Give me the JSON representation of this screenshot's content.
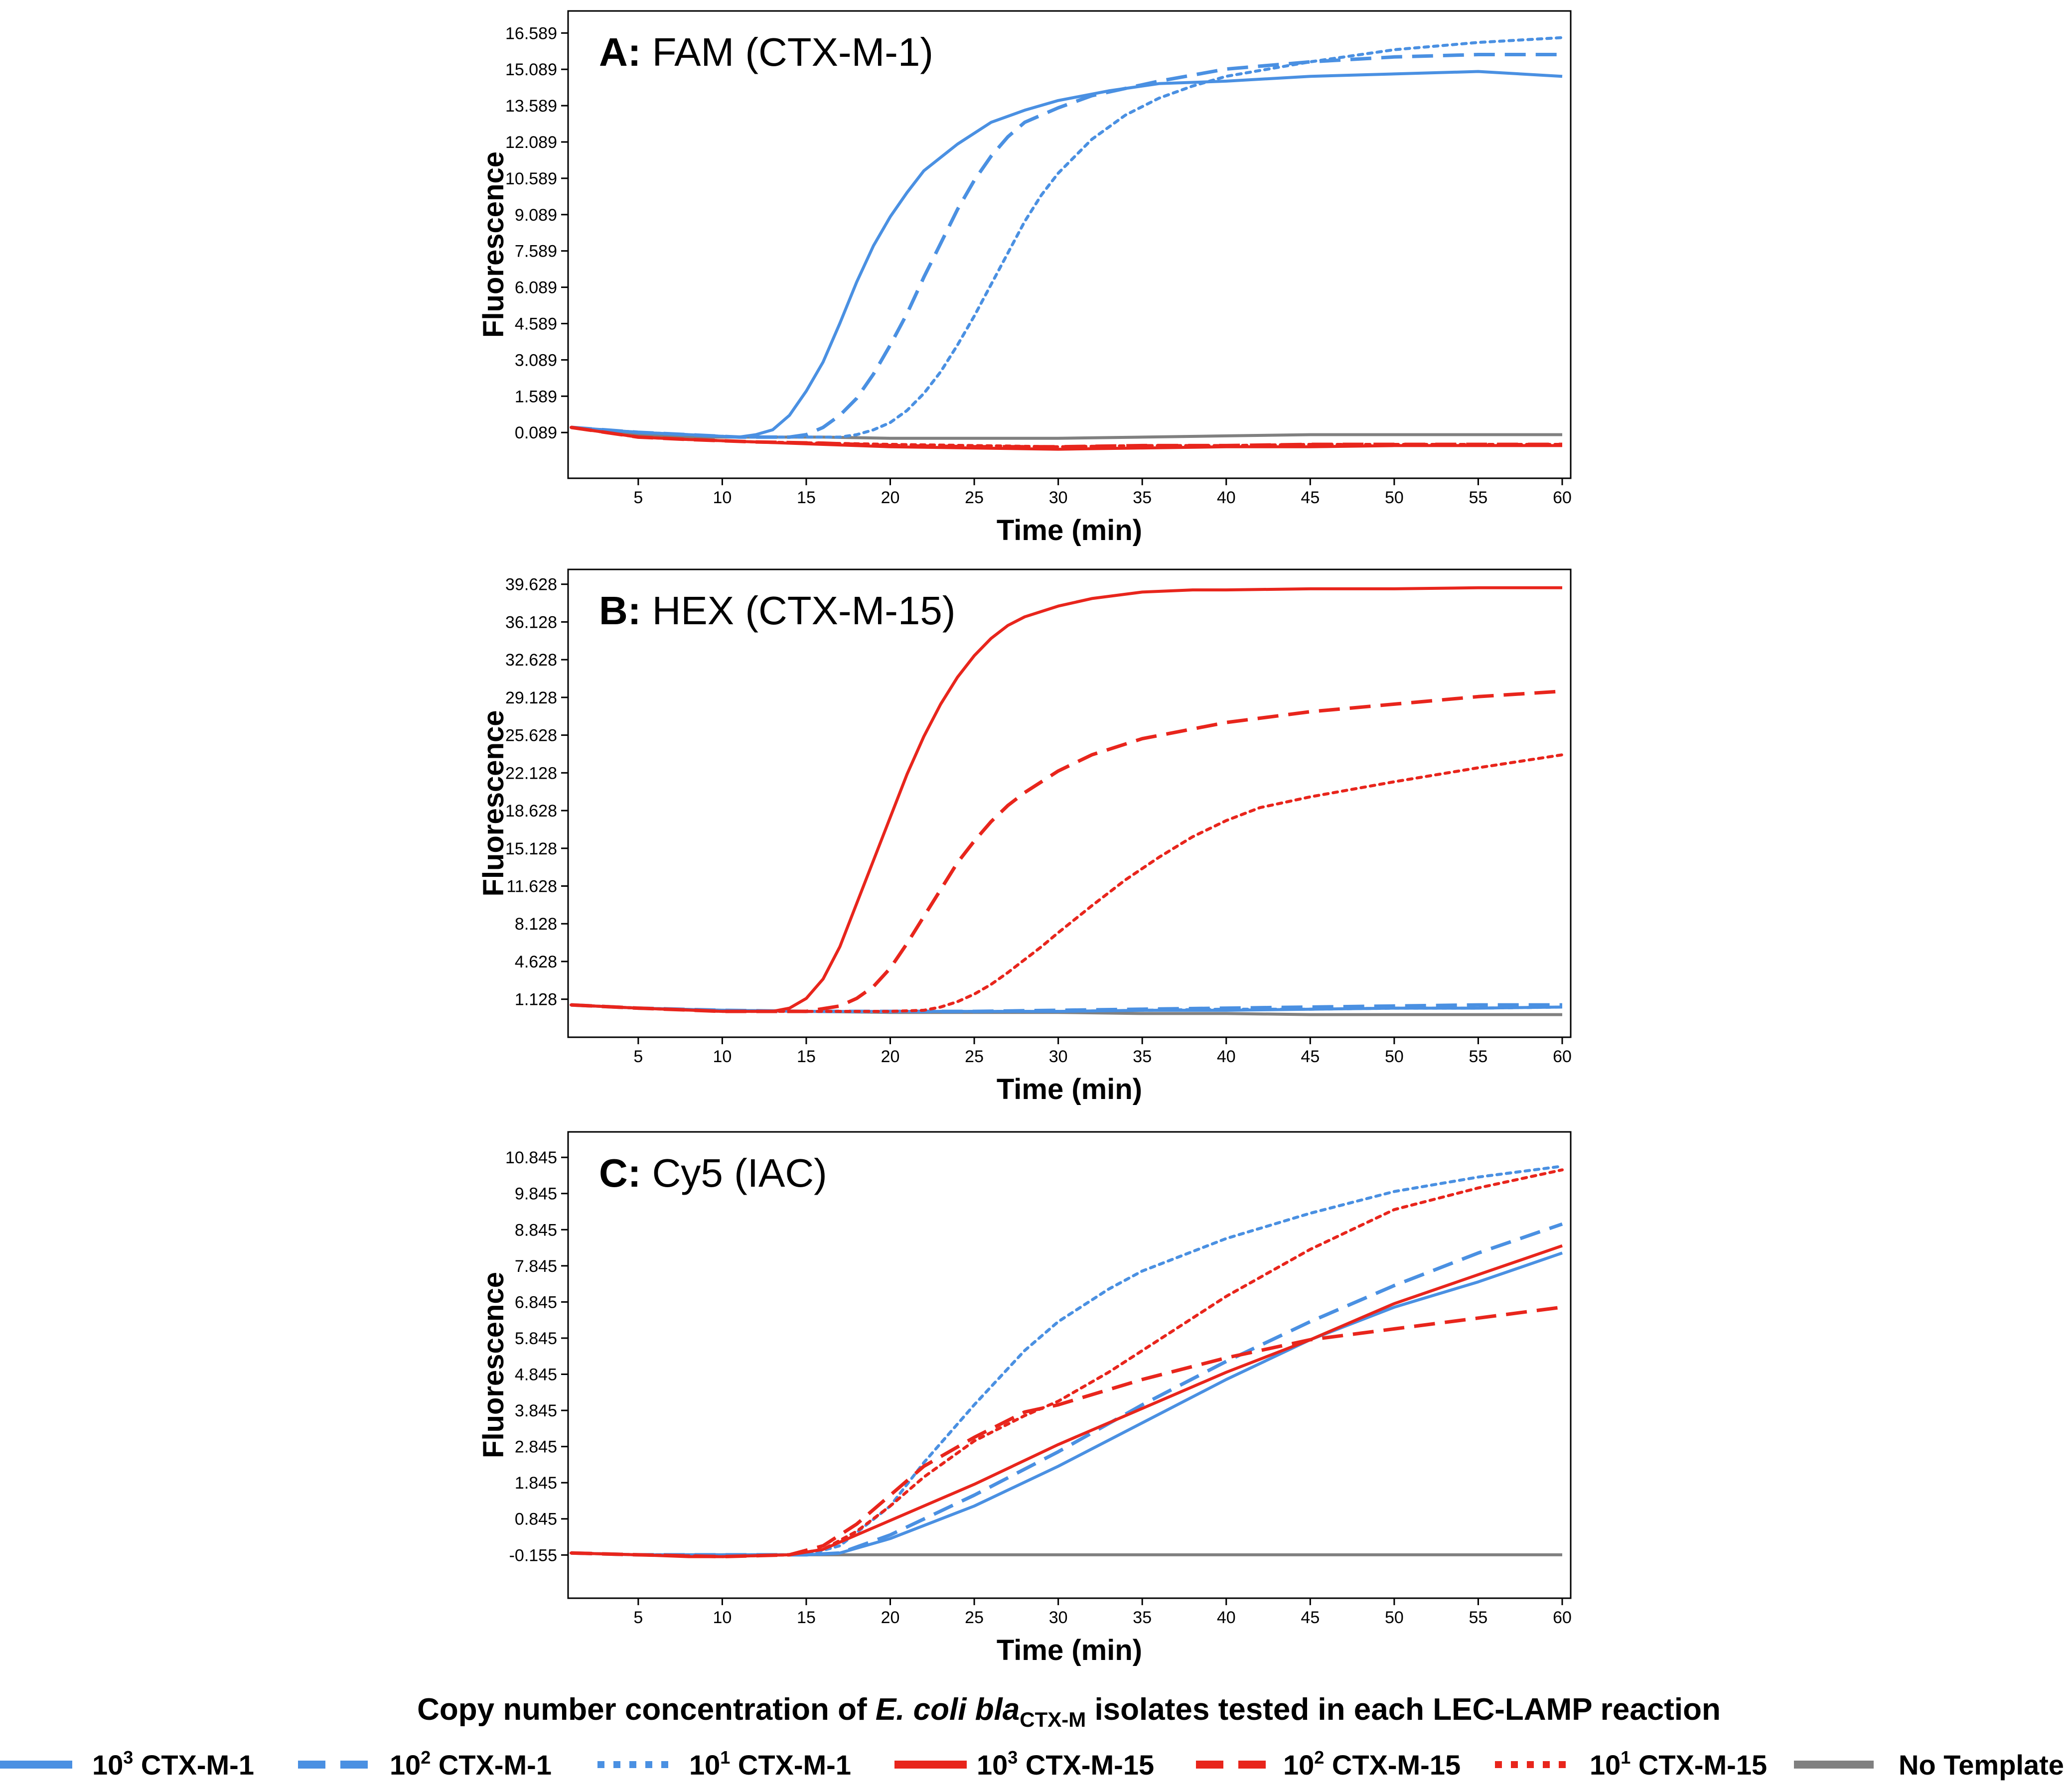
{
  "colors": {
    "blue": "#4a90e2",
    "red": "#e8251c",
    "gray": "#808080",
    "axis": "#000000",
    "plot_bg": "#ffffff"
  },
  "chart_data": [
    {
      "type": "line",
      "panel_letter": "A:",
      "title": "FAM (CTX-M-1)",
      "xlabel": "Time (min)",
      "ylabel": "Fluorescence",
      "xlim": [
        1,
        60
      ],
      "ylim": [
        -1.8,
        17.5
      ],
      "xticks": [
        5,
        10,
        15,
        20,
        25,
        30,
        35,
        40,
        45,
        50,
        55,
        60
      ],
      "yticks": [
        "0.089",
        "1.589",
        "3.089",
        "4.589",
        "6.089",
        "7.589",
        "9.089",
        "10.589",
        "12.089",
        "13.589",
        "15.089",
        "16.589"
      ],
      "series": [
        {
          "name": "10³ CTX-M-1",
          "color": "blue",
          "dash": "solid",
          "x": [
            1,
            3,
            5,
            8,
            11,
            12,
            13,
            14,
            15,
            16,
            17,
            18,
            19,
            20,
            21,
            22,
            24,
            26,
            28,
            30,
            33,
            36,
            40,
            45,
            50,
            55,
            60
          ],
          "values": [
            0.3,
            0.2,
            0.1,
            0.0,
            -0.1,
            0.0,
            0.2,
            0.8,
            1.8,
            3.0,
            4.6,
            6.3,
            7.8,
            9.0,
            10.0,
            10.9,
            12.0,
            12.9,
            13.4,
            13.8,
            14.2,
            14.5,
            14.6,
            14.8,
            14.9,
            15.0,
            14.8
          ]
        },
        {
          "name": "10² CTX-M-1",
          "color": "blue",
          "dash": "dash",
          "x": [
            1,
            3,
            5,
            8,
            11,
            14,
            15,
            16,
            17,
            18,
            19,
            20,
            21,
            22,
            23,
            24,
            25,
            26,
            27,
            28,
            30,
            32,
            34,
            36,
            40,
            45,
            50,
            55,
            60
          ],
          "values": [
            0.3,
            0.2,
            0.1,
            0.0,
            -0.1,
            -0.1,
            0.0,
            0.3,
            0.8,
            1.5,
            2.5,
            3.7,
            5.0,
            6.5,
            7.9,
            9.3,
            10.5,
            11.5,
            12.3,
            12.9,
            13.5,
            14.0,
            14.3,
            14.6,
            15.1,
            15.4,
            15.6,
            15.7,
            15.7
          ]
        },
        {
          "name": "10¹ CTX-M-1",
          "color": "blue",
          "dash": "dot",
          "x": [
            1,
            3,
            5,
            8,
            11,
            14,
            17,
            18,
            19,
            20,
            21,
            22,
            23,
            24,
            25,
            26,
            27,
            28,
            29,
            30,
            32,
            34,
            36,
            38,
            40,
            45,
            50,
            55,
            60
          ],
          "values": [
            0.3,
            0.2,
            0.1,
            0.0,
            -0.1,
            -0.1,
            -0.1,
            0.0,
            0.2,
            0.5,
            1.0,
            1.7,
            2.6,
            3.7,
            4.9,
            6.2,
            7.5,
            8.8,
            9.9,
            10.8,
            12.2,
            13.2,
            13.9,
            14.4,
            14.8,
            15.4,
            15.9,
            16.2,
            16.4
          ]
        },
        {
          "name": "10³ CTX-M-15",
          "color": "red",
          "dash": "solid",
          "x": [
            1,
            3,
            5,
            8,
            12,
            16,
            20,
            25,
            30,
            35,
            40,
            45,
            50,
            55,
            60
          ],
          "values": [
            0.3,
            0.1,
            -0.1,
            -0.2,
            -0.3,
            -0.4,
            -0.5,
            -0.55,
            -0.6,
            -0.55,
            -0.5,
            -0.5,
            -0.45,
            -0.45,
            -0.45
          ]
        },
        {
          "name": "10² CTX-M-15",
          "color": "red",
          "dash": "dash",
          "x": [
            1,
            3,
            5,
            8,
            12,
            16,
            20,
            25,
            30,
            35,
            40,
            45,
            50,
            55,
            60
          ],
          "values": [
            0.3,
            0.1,
            -0.1,
            -0.2,
            -0.3,
            -0.35,
            -0.45,
            -0.5,
            -0.5,
            -0.45,
            -0.45,
            -0.4,
            -0.4,
            -0.4,
            -0.4
          ]
        },
        {
          "name": "10¹ CTX-M-15",
          "color": "red",
          "dash": "dot",
          "x": [
            1,
            3,
            5,
            8,
            12,
            16,
            20,
            25,
            30,
            35,
            40,
            45,
            50,
            55,
            60
          ],
          "values": [
            0.3,
            0.1,
            -0.1,
            -0.2,
            -0.3,
            -0.35,
            -0.4,
            -0.45,
            -0.5,
            -0.45,
            -0.45,
            -0.4,
            -0.4,
            -0.4,
            -0.4
          ]
        },
        {
          "name": "No Template",
          "color": "gray",
          "dash": "solid",
          "x": [
            1,
            3,
            5,
            8,
            12,
            16,
            20,
            25,
            30,
            35,
            40,
            45,
            50,
            55,
            60
          ],
          "values": [
            0.3,
            0.1,
            0.0,
            -0.1,
            -0.1,
            -0.1,
            -0.15,
            -0.15,
            -0.15,
            -0.1,
            -0.05,
            0.0,
            0.0,
            0.0,
            0.0
          ]
        }
      ]
    },
    {
      "type": "line",
      "panel_letter": "B:",
      "title": "HEX (CTX-M-15)",
      "xlabel": "Time (min)",
      "ylabel": "Fluorescence",
      "xlim": [
        1,
        60
      ],
      "ylim": [
        -2.4,
        41
      ],
      "xticks": [
        5,
        10,
        15,
        20,
        25,
        30,
        35,
        40,
        45,
        50,
        55,
        60
      ],
      "yticks": [
        "1.128",
        "4.628",
        "8.128",
        "11.628",
        "15.128",
        "18.628",
        "22.128",
        "25.628",
        "29.128",
        "32.628",
        "36.128",
        "39.628"
      ],
      "series": [
        {
          "name": "10³ CTX-M-1",
          "color": "blue",
          "dash": "solid",
          "x": [
            1,
            5,
            10,
            15,
            20,
            25,
            30,
            35,
            40,
            45,
            50,
            55,
            60
          ],
          "values": [
            0.6,
            0.3,
            0.1,
            0.0,
            0.0,
            0.0,
            0.0,
            0.1,
            0.1,
            0.2,
            0.3,
            0.3,
            0.4
          ]
        },
        {
          "name": "10² CTX-M-1",
          "color": "blue",
          "dash": "dash",
          "x": [
            1,
            5,
            10,
            15,
            20,
            25,
            30,
            35,
            40,
            45,
            50,
            55,
            60
          ],
          "values": [
            0.6,
            0.3,
            0.1,
            0.0,
            0.0,
            0.0,
            0.1,
            0.2,
            0.3,
            0.4,
            0.5,
            0.6,
            0.6
          ]
        },
        {
          "name": "10¹ CTX-M-1",
          "color": "blue",
          "dash": "dot",
          "x": [
            1,
            5,
            10,
            15,
            20,
            25,
            30,
            35,
            40,
            45,
            50,
            55,
            60
          ],
          "values": [
            0.6,
            0.3,
            0.1,
            0.0,
            0.0,
            0.0,
            0.0,
            0.1,
            0.2,
            0.2,
            0.3,
            0.3,
            0.4
          ]
        },
        {
          "name": "10³ CTX-M-15",
          "color": "red",
          "dash": "solid",
          "x": [
            1,
            5,
            10,
            13,
            14,
            15,
            16,
            17,
            18,
            19,
            20,
            21,
            22,
            23,
            24,
            25,
            26,
            27,
            28,
            30,
            32,
            35,
            38,
            40,
            45,
            50,
            55,
            60
          ],
          "values": [
            0.6,
            0.3,
            0.0,
            0.0,
            0.3,
            1.2,
            3.0,
            6.0,
            10.0,
            14.0,
            18.0,
            22.0,
            25.5,
            28.5,
            31.0,
            33.0,
            34.6,
            35.8,
            36.6,
            37.6,
            38.3,
            38.9,
            39.1,
            39.1,
            39.2,
            39.2,
            39.3,
            39.3
          ]
        },
        {
          "name": "10² CTX-M-15",
          "color": "red",
          "dash": "dash",
          "x": [
            1,
            5,
            10,
            15,
            17,
            18,
            19,
            20,
            21,
            22,
            23,
            24,
            25,
            26,
            27,
            28,
            30,
            32,
            35,
            40,
            45,
            50,
            55,
            60
          ],
          "values": [
            0.6,
            0.3,
            0.0,
            0.0,
            0.5,
            1.2,
            2.3,
            4.0,
            6.3,
            8.8,
            11.3,
            13.8,
            15.8,
            17.6,
            19.1,
            20.3,
            22.3,
            23.8,
            25.3,
            26.8,
            27.8,
            28.5,
            29.2,
            29.7
          ]
        },
        {
          "name": "10¹ CTX-M-15",
          "color": "red",
          "dash": "dot",
          "x": [
            1,
            5,
            10,
            15,
            20,
            22,
            23,
            24,
            25,
            26,
            27,
            28,
            29,
            30,
            32,
            34,
            36,
            38,
            40,
            42,
            45,
            50,
            55,
            60
          ],
          "values": [
            0.6,
            0.3,
            0.0,
            0.0,
            0.0,
            0.1,
            0.4,
            0.9,
            1.6,
            2.5,
            3.6,
            4.8,
            6.0,
            7.3,
            9.8,
            12.2,
            14.3,
            16.2,
            17.7,
            18.9,
            19.9,
            21.3,
            22.6,
            23.8
          ]
        },
        {
          "name": "No Template",
          "color": "gray",
          "dash": "solid",
          "x": [
            1,
            5,
            10,
            15,
            20,
            25,
            30,
            35,
            40,
            45,
            50,
            55,
            60
          ],
          "values": [
            0.6,
            0.3,
            0.1,
            0.0,
            -0.1,
            -0.1,
            -0.1,
            -0.2,
            -0.2,
            -0.3,
            -0.3,
            -0.3,
            -0.3
          ]
        }
      ]
    },
    {
      "type": "line",
      "panel_letter": "C:",
      "title": "Cy5 (IAC)",
      "xlabel": "Time (min)",
      "ylabel": "Fluorescence",
      "xlim": [
        1,
        60
      ],
      "ylim": [
        -1.35,
        11.55
      ],
      "xticks": [
        5,
        10,
        15,
        20,
        25,
        30,
        35,
        40,
        45,
        50,
        55,
        60
      ],
      "yticks": [
        "-0.155",
        "0.845",
        "1.845",
        "2.845",
        "3.845",
        "4.845",
        "5.845",
        "6.845",
        "7.845",
        "8.845",
        "9.845",
        "10.845"
      ],
      "series": [
        {
          "name": "10³ CTX-M-1",
          "color": "blue",
          "dash": "solid",
          "x": [
            1,
            5,
            10,
            15,
            17,
            20,
            25,
            30,
            35,
            40,
            45,
            50,
            55,
            60
          ],
          "values": [
            -0.1,
            -0.15,
            -0.15,
            -0.15,
            -0.1,
            0.3,
            1.2,
            2.3,
            3.5,
            4.7,
            5.8,
            6.7,
            7.4,
            8.2
          ]
        },
        {
          "name": "10² CTX-M-1",
          "color": "blue",
          "dash": "dash",
          "x": [
            1,
            5,
            10,
            15,
            17,
            20,
            25,
            30,
            35,
            40,
            45,
            50,
            55,
            60
          ],
          "values": [
            -0.1,
            -0.15,
            -0.15,
            -0.15,
            -0.1,
            0.4,
            1.5,
            2.7,
            4.0,
            5.2,
            6.3,
            7.3,
            8.2,
            9.0
          ]
        },
        {
          "name": "10¹ CTX-M-1",
          "color": "blue",
          "dash": "dot",
          "x": [
            1,
            5,
            10,
            15,
            17,
            20,
            22,
            25,
            28,
            30,
            33,
            35,
            40,
            45,
            50,
            55,
            60
          ],
          "values": [
            -0.1,
            -0.15,
            -0.15,
            -0.15,
            0.1,
            1.2,
            2.4,
            4.0,
            5.5,
            6.3,
            7.2,
            7.7,
            8.6,
            9.3,
            9.9,
            10.3,
            10.6
          ]
        },
        {
          "name": "10³ CTX-M-15",
          "color": "red",
          "dash": "solid",
          "x": [
            1,
            5,
            8,
            10,
            14,
            16,
            20,
            25,
            30,
            35,
            40,
            45,
            50,
            55,
            60
          ],
          "values": [
            -0.1,
            -0.15,
            -0.2,
            -0.2,
            -0.15,
            0.0,
            0.8,
            1.8,
            2.9,
            3.9,
            4.9,
            5.8,
            6.8,
            7.6,
            8.4
          ]
        },
        {
          "name": "10² CTX-M-15",
          "color": "red",
          "dash": "dash",
          "x": [
            1,
            5,
            10,
            14,
            16,
            18,
            20,
            22,
            25,
            28,
            30,
            35,
            40,
            45,
            50,
            55,
            60
          ],
          "values": [
            -0.1,
            -0.15,
            -0.2,
            -0.15,
            0.1,
            0.7,
            1.5,
            2.3,
            3.1,
            3.8,
            4.0,
            4.7,
            5.3,
            5.8,
            6.1,
            6.4,
            6.7
          ]
        },
        {
          "name": "10¹ CTX-M-15",
          "color": "red",
          "dash": "dot",
          "x": [
            1,
            5,
            10,
            14,
            16,
            18,
            20,
            22,
            25,
            28,
            30,
            33,
            35,
            40,
            45,
            50,
            55,
            60
          ],
          "values": [
            -0.1,
            -0.15,
            -0.2,
            -0.15,
            0.0,
            0.5,
            1.2,
            2.0,
            3.0,
            3.7,
            4.1,
            4.9,
            5.5,
            7.0,
            8.3,
            9.4,
            10.0,
            10.5
          ]
        },
        {
          "name": "No Template",
          "color": "gray",
          "dash": "solid",
          "x": [
            1,
            5,
            10,
            15,
            20,
            25,
            30,
            35,
            40,
            45,
            50,
            55,
            60
          ],
          "values": [
            -0.1,
            -0.15,
            -0.15,
            -0.15,
            -0.15,
            -0.15,
            -0.15,
            -0.15,
            -0.15,
            -0.15,
            -0.15,
            -0.15,
            -0.15
          ]
        }
      ]
    }
  ],
  "caption": {
    "prefix": "Copy number concentration of ",
    "italic": "E. coli bla",
    "subscript": "CTX-M",
    "suffix": " isolates tested in each LEC-LAMP reaction"
  },
  "legend": [
    {
      "base": "10",
      "exp": "3",
      "label": " CTX-M-1",
      "color": "blue",
      "dash": "solid"
    },
    {
      "base": "10",
      "exp": "2",
      "label": " CTX-M-1",
      "color": "blue",
      "dash": "dash"
    },
    {
      "base": "10",
      "exp": "1",
      "label": " CTX-M-1",
      "color": "blue",
      "dash": "dot"
    },
    {
      "base": "10",
      "exp": "3",
      "label": " CTX-M-15",
      "color": "red",
      "dash": "solid"
    },
    {
      "base": "10",
      "exp": "2",
      "label": " CTX-M-15",
      "color": "red",
      "dash": "dash"
    },
    {
      "base": "10",
      "exp": "1",
      "label": " CTX-M-15",
      "color": "red",
      "dash": "dot"
    },
    {
      "base": "",
      "exp": "",
      "label": "No Template",
      "color": "gray",
      "dash": "solid"
    }
  ]
}
